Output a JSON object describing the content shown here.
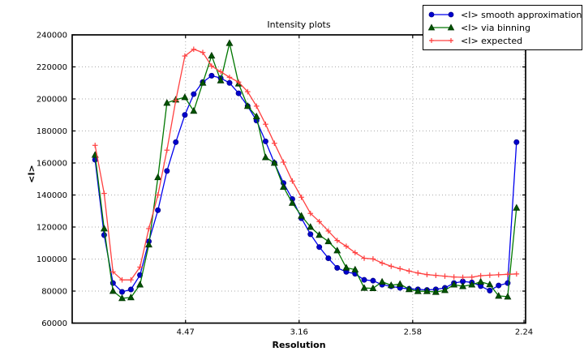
{
  "figure": {
    "title": "Intensity plots",
    "xlabel": "Resolution",
    "ylabel": "<I>"
  },
  "chart_data": {
    "type": "line",
    "title": "Intensity plots",
    "xlabel": "Resolution",
    "ylabel": "<I>",
    "grid": true,
    "legend_position": "upper right",
    "x_axis": {
      "note": "axis linear in 1/d^2, tick labels show d in Angstrom",
      "range": [
        0.0,
        0.2
      ],
      "tick_positions": [
        0.05,
        0.1001,
        0.1502,
        0.1993
      ],
      "tick_labels": [
        "4.47",
        "3.16",
        "2.58",
        "2.24"
      ]
    },
    "y_axis": {
      "range": [
        60000,
        240000
      ],
      "tick_step": 20000,
      "tick_values": [
        60000,
        80000,
        100000,
        120000,
        140000,
        160000,
        180000,
        200000,
        220000,
        240000
      ],
      "tick_labels": [
        "60000",
        "80000",
        "100000",
        "120000",
        "140000",
        "160000",
        "180000",
        "200000",
        "220000",
        "240000"
      ]
    },
    "x": [
      0.0101,
      0.0141,
      0.018,
      0.022,
      0.0259,
      0.0299,
      0.0338,
      0.0378,
      0.0418,
      0.0457,
      0.0497,
      0.0536,
      0.0576,
      0.0615,
      0.0655,
      0.0694,
      0.0734,
      0.0774,
      0.0813,
      0.0853,
      0.0892,
      0.0932,
      0.0971,
      0.1011,
      0.1051,
      0.109,
      0.113,
      0.1169,
      0.1209,
      0.1248,
      0.1288,
      0.1327,
      0.1367,
      0.1407,
      0.1446,
      0.1486,
      0.1525,
      0.1565,
      0.1604,
      0.1644,
      0.1684,
      0.1723,
      0.1763,
      0.1802,
      0.1842,
      0.1881,
      0.1921,
      0.196
    ],
    "series": [
      {
        "name": "<I> smooth approximation",
        "marker": "circle",
        "line_color": "#0000ee",
        "marker_color": "#0000cd",
        "values": [
          162000,
          115000,
          85000,
          79500,
          81000,
          90000,
          111000,
          130500,
          155000,
          173000,
          190000,
          203000,
          210500,
          214500,
          213000,
          210000,
          203500,
          195500,
          186500,
          173500,
          160000,
          147500,
          137500,
          125500,
          115500,
          107500,
          100500,
          94500,
          92000,
          90800,
          87000,
          86500,
          84000,
          83000,
          82000,
          81400,
          81100,
          80700,
          81100,
          82000,
          85000,
          86000,
          85400,
          83100,
          80300,
          83500,
          85000,
          173000
        ]
      },
      {
        "name": "<I> via binning",
        "marker": "triangle",
        "line_color": "#007700",
        "marker_color": "#005500",
        "values": [
          165000,
          119000,
          80000,
          75500,
          76000,
          84000,
          109000,
          151000,
          197500,
          199500,
          201000,
          192500,
          210000,
          227000,
          211500,
          234800,
          209500,
          195500,
          189000,
          163500,
          160000,
          145000,
          135000,
          127000,
          120000,
          115000,
          111000,
          105300,
          94600,
          93400,
          81900,
          81700,
          85800,
          83600,
          84400,
          81100,
          79900,
          79900,
          79400,
          80500,
          84000,
          83000,
          84000,
          85800,
          84100,
          77000,
          76500,
          132000
        ]
      },
      {
        "name": "<I> expected",
        "marker": "plus",
        "line_color": "#ff4040",
        "marker_color": "#ff4040",
        "values": [
          171000,
          141000,
          92000,
          87000,
          87000,
          95000,
          119000,
          140000,
          168000,
          199000,
          226800,
          231000,
          229000,
          220500,
          217000,
          213500,
          210500,
          204500,
          195500,
          184200,
          172300,
          160500,
          148700,
          138600,
          128500,
          123400,
          117500,
          111600,
          108000,
          104000,
          100500,
          100100,
          97500,
          95500,
          94000,
          92500,
          91300,
          90300,
          89800,
          89300,
          88800,
          88600,
          88700,
          89600,
          89900,
          90200,
          90500,
          90700
        ]
      }
    ],
    "style": {
      "grid_color": "#aaaaaa",
      "frame_color": "#000000",
      "background": "#ffffff"
    }
  }
}
